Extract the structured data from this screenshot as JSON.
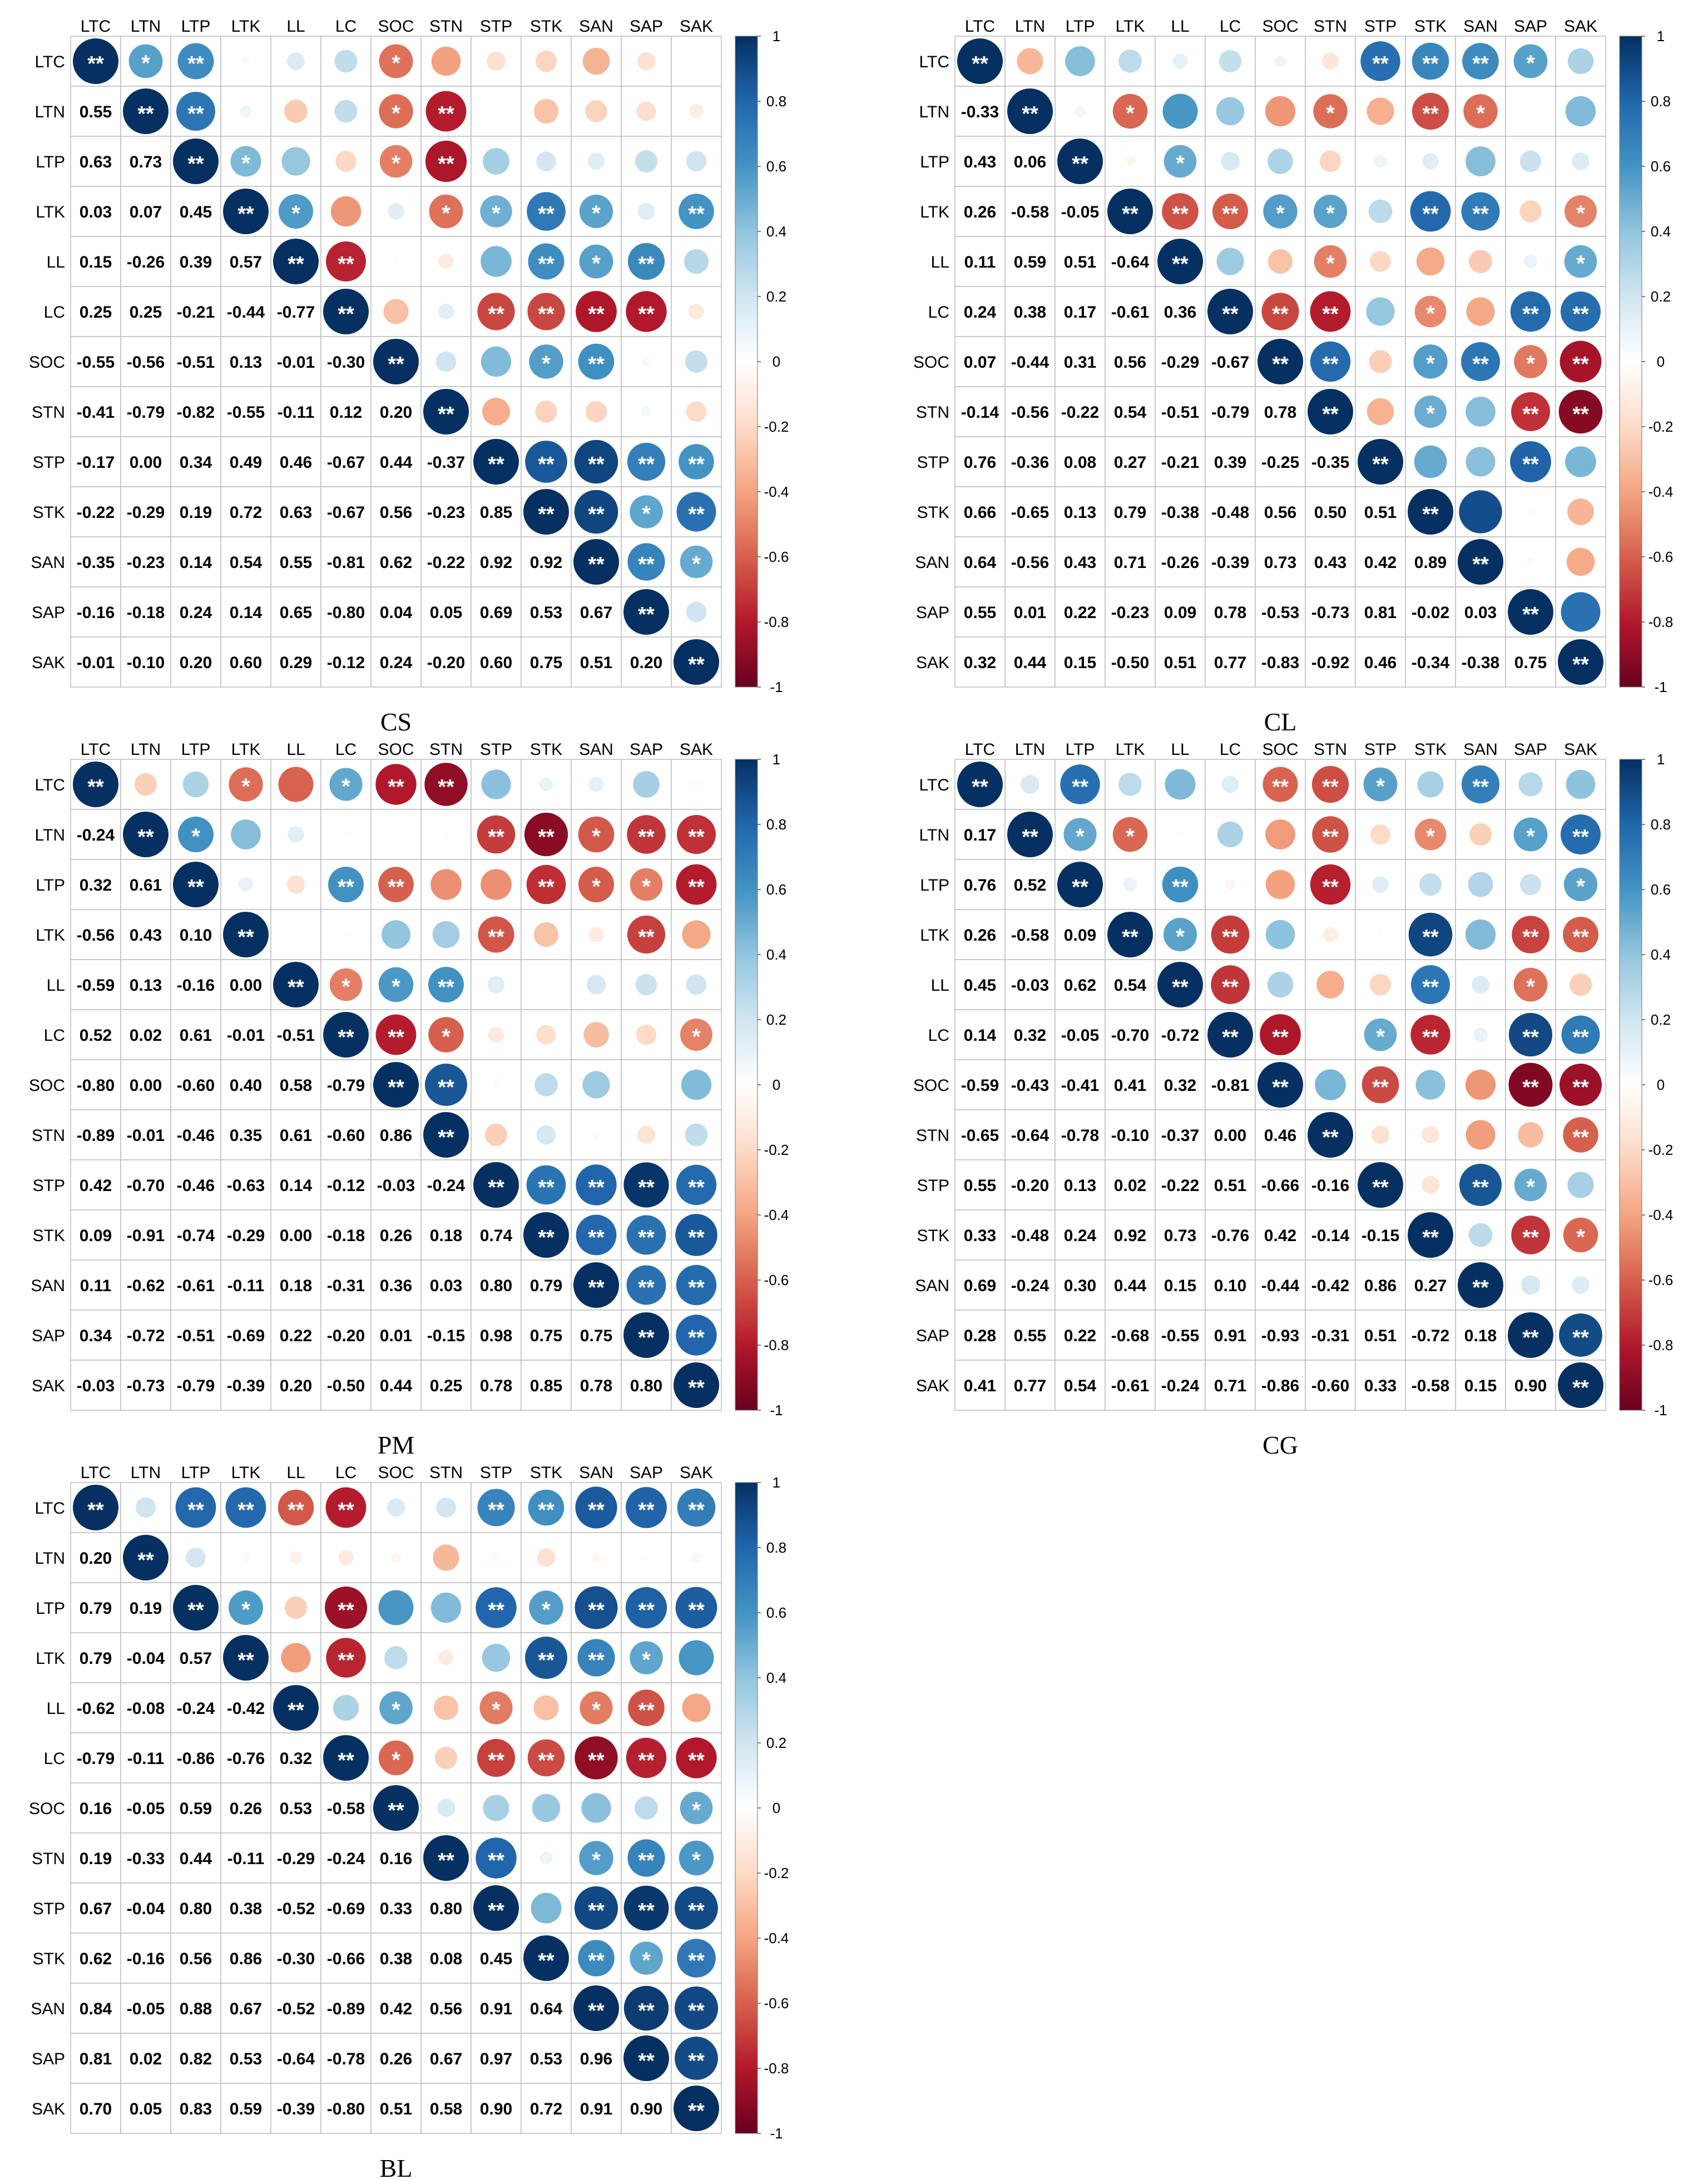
{
  "variables": [
    "LTC",
    "LTN",
    "LTP",
    "LTK",
    "LL",
    "LC",
    "SOC",
    "STN",
    "STP",
    "STK",
    "SAN",
    "SAP",
    "SAK"
  ],
  "colorbar_ticks": [
    "1",
    "0.8",
    "0.6",
    "0.4",
    "0.2",
    "0",
    "-0.2",
    "-0.4",
    "-0.6",
    "-0.8",
    "-1"
  ],
  "chart_data": [
    {
      "type": "heatmap",
      "title": "CS",
      "lower": [
        [],
        [
          0.55
        ],
        [
          0.63,
          0.73
        ],
        [
          0.03,
          0.07,
          0.45
        ],
        [
          0.15,
          -0.26,
          0.39,
          0.57
        ],
        [
          0.25,
          0.25,
          -0.21,
          -0.44,
          -0.77
        ],
        [
          -0.55,
          -0.56,
          -0.51,
          0.13,
          -0.01,
          -0.3
        ],
        [
          -0.41,
          -0.79,
          -0.82,
          -0.55,
          -0.11,
          0.12,
          0.2
        ],
        [
          -0.17,
          0.0,
          0.34,
          0.49,
          0.46,
          -0.67,
          0.44,
          -0.37
        ],
        [
          -0.22,
          -0.29,
          0.19,
          0.72,
          0.63,
          -0.67,
          0.56,
          -0.23,
          0.85
        ],
        [
          -0.35,
          -0.23,
          0.14,
          0.54,
          0.55,
          -0.81,
          0.62,
          -0.22,
          0.92,
          0.92
        ],
        [
          -0.16,
          -0.18,
          0.24,
          0.14,
          0.65,
          -0.8,
          0.04,
          0.05,
          0.69,
          0.53,
          0.67
        ],
        [
          -0.01,
          -0.1,
          0.2,
          0.6,
          0.29,
          -0.12,
          0.24,
          -0.2,
          0.6,
          0.75,
          0.51,
          0.2
        ]
      ],
      "sig": [
        [],
        [
          "*"
        ],
        [
          "**",
          "**"
        ],
        [
          "",
          "",
          "*"
        ],
        [
          "",
          "",
          "",
          "*"
        ],
        [
          "",
          "",
          "",
          "",
          "**"
        ],
        [
          "*",
          "*",
          "*",
          "",
          "",
          ""
        ],
        [
          "",
          "**",
          "**",
          "*",
          "",
          "",
          ""
        ],
        [
          "",
          "",
          "",
          "*",
          "",
          "**",
          "",
          ""
        ],
        [
          "",
          "",
          "",
          "**",
          "**",
          "**",
          "*",
          "",
          "**"
        ],
        [
          "",
          "",
          "",
          "*",
          "*",
          "**",
          "**",
          "",
          "**",
          "**"
        ],
        [
          "",
          "",
          "",
          "",
          "**",
          "**",
          "",
          "",
          "**",
          "*",
          "**"
        ],
        [
          "",
          "",
          "",
          "**",
          "",
          "",
          "",
          "",
          "**",
          "**",
          "*",
          ""
        ]
      ]
    },
    {
      "type": "heatmap",
      "title": "CL",
      "lower": [
        [],
        [
          -0.33
        ],
        [
          0.43,
          0.06
        ],
        [
          0.26,
          -0.58,
          -0.05
        ],
        [
          0.11,
          0.59,
          0.51,
          -0.64
        ],
        [
          0.24,
          0.38,
          0.17,
          -0.61,
          0.36
        ],
        [
          0.07,
          -0.44,
          0.31,
          0.56,
          -0.29,
          -0.67
        ],
        [
          -0.14,
          -0.56,
          -0.22,
          0.54,
          -0.51,
          -0.79,
          0.78
        ],
        [
          0.76,
          -0.36,
          0.08,
          0.27,
          -0.21,
          0.39,
          -0.25,
          -0.35
        ],
        [
          0.66,
          -0.65,
          0.13,
          0.79,
          -0.38,
          -0.48,
          0.56,
          0.5,
          0.51
        ],
        [
          0.64,
          -0.56,
          0.43,
          0.71,
          -0.26,
          -0.39,
          0.73,
          0.43,
          0.42,
          0.89
        ],
        [
          0.55,
          0.01,
          0.22,
          -0.23,
          0.09,
          0.78,
          -0.53,
          -0.73,
          0.81,
          -0.02,
          0.03
        ],
        [
          0.32,
          0.44,
          0.15,
          -0.5,
          0.51,
          0.77,
          -0.83,
          -0.92,
          0.46,
          -0.34,
          -0.38,
          0.75
        ]
      ],
      "sig": [
        [],
        [
          ""
        ],
        [
          "",
          ""
        ],
        [
          "",
          "*",
          ""
        ],
        [
          "",
          "",
          "*",
          "**"
        ],
        [
          "",
          "",
          "",
          "**",
          ""
        ],
        [
          "",
          "",
          "",
          "*",
          "",
          "**"
        ],
        [
          "",
          "*",
          "",
          "*",
          "*",
          "**",
          "**"
        ],
        [
          "**",
          "",
          "",
          "",
          "",
          "",
          "",
          ""
        ],
        [
          "**",
          "**",
          "",
          "**",
          "",
          "*",
          "*",
          "*",
          ""
        ],
        [
          "**",
          "*",
          "",
          "**",
          "",
          "",
          "**",
          "",
          "",
          ""
        ],
        [
          "*",
          "",
          "",
          "",
          "",
          "**",
          "*",
          "**",
          "**",
          "",
          ""
        ],
        [
          "",
          "",
          "",
          "*",
          "*",
          "**",
          "**",
          "**",
          "",
          "",
          "",
          ""
        ]
      ]
    },
    {
      "type": "heatmap",
      "title": "PM",
      "lower": [
        [],
        [
          -0.24
        ],
        [
          0.32,
          0.61
        ],
        [
          -0.56,
          0.43,
          0.1
        ],
        [
          -0.59,
          0.13,
          -0.16,
          0.0
        ],
        [
          0.52,
          0.02,
          0.61,
          -0.01,
          -0.51
        ],
        [
          -0.8,
          0.0,
          -0.6,
          0.4,
          0.58,
          -0.79
        ],
        [
          -0.89,
          -0.01,
          -0.46,
          0.35,
          0.61,
          -0.6,
          0.86
        ],
        [
          0.42,
          -0.7,
          -0.46,
          -0.63,
          0.14,
          -0.12,
          -0.03,
          -0.24
        ],
        [
          0.09,
          -0.91,
          -0.74,
          -0.29,
          0.0,
          -0.18,
          0.26,
          0.18,
          0.74
        ],
        [
          0.11,
          -0.62,
          -0.61,
          -0.11,
          0.18,
          -0.31,
          0.36,
          0.03,
          0.8,
          0.79
        ],
        [
          0.34,
          -0.72,
          -0.51,
          -0.69,
          0.22,
          -0.2,
          0.01,
          -0.15,
          0.98,
          0.75,
          0.75
        ],
        [
          -0.03,
          -0.73,
          -0.79,
          -0.39,
          0.2,
          -0.5,
          0.44,
          0.25,
          0.78,
          0.85,
          0.78,
          0.8
        ]
      ],
      "sig": [
        [],
        [
          ""
        ],
        [
          "",
          "*"
        ],
        [
          "*",
          "",
          ""
        ],
        [
          "",
          "",
          "",
          ""
        ],
        [
          "*",
          "",
          "**",
          "",
          "*"
        ],
        [
          "**",
          "",
          "**",
          "",
          "*",
          "**"
        ],
        [
          "**",
          "",
          "",
          "",
          "**",
          "*",
          "**"
        ],
        [
          "",
          "**",
          "",
          "**",
          "",
          "",
          "",
          ""
        ],
        [
          "",
          "**",
          "**",
          "",
          "",
          "",
          "",
          "",
          "**"
        ],
        [
          "",
          "*",
          "*",
          "",
          "",
          "",
          "",
          "",
          "**",
          "**"
        ],
        [
          "",
          "**",
          "*",
          "**",
          "",
          "",
          "",
          "",
          "**",
          "**",
          "**"
        ],
        [
          "",
          "**",
          "**",
          "",
          "",
          "*",
          "",
          "",
          "**",
          "**",
          "**",
          "**"
        ]
      ]
    },
    {
      "type": "heatmap",
      "title": "CG",
      "lower": [
        [],
        [
          0.17
        ],
        [
          0.76,
          0.52
        ],
        [
          0.26,
          -0.58,
          0.09
        ],
        [
          0.45,
          -0.03,
          0.62,
          0.54
        ],
        [
          0.14,
          0.32,
          -0.05,
          -0.7,
          -0.72
        ],
        [
          -0.59,
          -0.43,
          -0.41,
          0.41,
          0.32,
          -0.81
        ],
        [
          -0.65,
          -0.64,
          -0.78,
          -0.1,
          -0.37,
          0.0,
          0.46
        ],
        [
          0.55,
          -0.2,
          0.13,
          0.02,
          -0.22,
          0.51,
          -0.66,
          -0.16
        ],
        [
          0.33,
          -0.48,
          0.24,
          0.92,
          0.73,
          -0.76,
          0.42,
          -0.14,
          -0.15
        ],
        [
          0.69,
          -0.24,
          0.3,
          0.44,
          0.15,
          0.1,
          -0.44,
          -0.42,
          0.86,
          0.27
        ],
        [
          0.28,
          0.55,
          0.22,
          -0.68,
          -0.55,
          0.91,
          -0.93,
          -0.31,
          0.51,
          -0.72,
          0.18
        ],
        [
          0.41,
          0.77,
          0.54,
          -0.61,
          -0.24,
          0.71,
          -0.86,
          -0.6,
          0.33,
          -0.58,
          0.15,
          0.9
        ]
      ],
      "sig": [
        [],
        [
          ""
        ],
        [
          "**",
          "*"
        ],
        [
          "",
          "*",
          ""
        ],
        [
          "",
          "",
          "**",
          "*"
        ],
        [
          "",
          "",
          "",
          "**",
          "**"
        ],
        [
          "**",
          "",
          "",
          "",
          "",
          "**"
        ],
        [
          "**",
          "**",
          "**",
          "",
          "",
          "",
          ""
        ],
        [
          "*",
          "",
          "",
          "",
          "",
          "*",
          "**",
          ""
        ],
        [
          "",
          "*",
          "",
          "**",
          "**",
          "**",
          "",
          "",
          ""
        ],
        [
          "**",
          "",
          "",
          "",
          "",
          "",
          "",
          "",
          "**",
          ""
        ],
        [
          "",
          "*",
          "",
          "**",
          "*",
          "**",
          "**",
          "",
          "*",
          "**",
          ""
        ],
        [
          "",
          "**",
          "*",
          "**",
          "",
          "**",
          "**",
          "**",
          "",
          "*",
          "",
          "**"
        ]
      ]
    },
    {
      "type": "heatmap",
      "title": "BL",
      "lower": [
        [],
        [
          0.2
        ],
        [
          0.79,
          0.19
        ],
        [
          0.79,
          -0.04,
          0.57
        ],
        [
          -0.62,
          -0.08,
          -0.24,
          -0.42
        ],
        [
          -0.79,
          -0.11,
          -0.86,
          -0.76,
          0.32
        ],
        [
          0.16,
          -0.05,
          0.59,
          0.26,
          0.53,
          -0.58
        ],
        [
          0.19,
          -0.33,
          0.44,
          -0.11,
          -0.29,
          -0.24,
          0.16
        ],
        [
          0.67,
          -0.04,
          0.8,
          0.38,
          -0.52,
          -0.69,
          0.33,
          0.8
        ],
        [
          0.62,
          -0.16,
          0.56,
          0.86,
          -0.3,
          -0.66,
          0.38,
          0.08,
          0.45
        ],
        [
          0.84,
          -0.05,
          0.88,
          0.67,
          -0.52,
          -0.89,
          0.42,
          0.56,
          0.91,
          0.64
        ],
        [
          0.81,
          0.02,
          0.82,
          0.53,
          -0.64,
          -0.78,
          0.26,
          0.67,
          0.97,
          0.53,
          0.96
        ],
        [
          0.7,
          0.05,
          0.83,
          0.59,
          -0.39,
          -0.8,
          0.51,
          0.58,
          0.9,
          0.72,
          0.91,
          0.9
        ]
      ],
      "sig": [
        [],
        [
          ""
        ],
        [
          "**",
          ""
        ],
        [
          "**",
          "",
          "*"
        ],
        [
          "**",
          "",
          "",
          ""
        ],
        [
          "**",
          "",
          "**",
          "**",
          ""
        ],
        [
          "",
          "",
          "",
          "",
          "*",
          "*"
        ],
        [
          "",
          "",
          "",
          "",
          "",
          "",
          ""
        ],
        [
          "**",
          "",
          "**",
          "",
          "*",
          "**",
          "",
          "**"
        ],
        [
          "**",
          "",
          "*",
          "**",
          "",
          "**",
          "",
          "",
          ""
        ],
        [
          "**",
          "",
          "**",
          "**",
          "*",
          "**",
          "",
          "*",
          "**",
          "**"
        ],
        [
          "**",
          "",
          "**",
          "*",
          "**",
          "**",
          "",
          "**",
          "**",
          "*",
          "**"
        ],
        [
          "**",
          "",
          "**",
          "",
          "",
          "**",
          "*",
          "*",
          "**",
          "**",
          "**",
          "**"
        ]
      ]
    }
  ]
}
